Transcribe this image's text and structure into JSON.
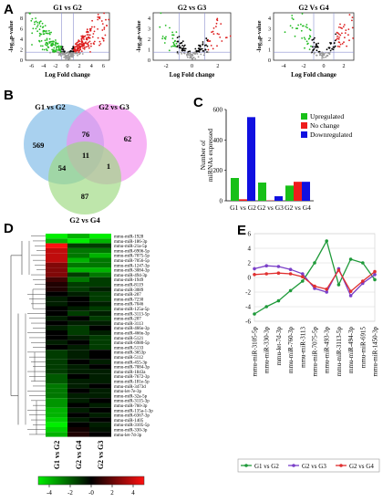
{
  "panels": {
    "a": "A",
    "b": "B",
    "c": "C",
    "d": "D",
    "e": "E"
  },
  "volcano": {
    "xlabel": "Log Fold change",
    "ylabel": "-log₁₀p-value",
    "plots": [
      {
        "title": "G1 vs G2",
        "xticks": [
          "-6",
          "-4",
          "-2",
          "0",
          "2",
          "4",
          "6"
        ],
        "yticks": [
          "0",
          "2",
          "4",
          "6",
          "8"
        ]
      },
      {
        "title": "G2 vs G3",
        "xticks": [
          "-2",
          "0",
          "2"
        ],
        "yticks": [
          "0",
          "1",
          "2",
          "3",
          "4"
        ]
      },
      {
        "title": "G2 Vs G4",
        "xticks": [
          "-4",
          "-2",
          "0",
          "2"
        ],
        "yticks": [
          "0",
          "1",
          "2",
          "3",
          "4"
        ]
      }
    ],
    "colors": {
      "up": "#dd1f1f",
      "down": "#22bb22",
      "ns": "#9a9a9a",
      "sig": "#000000",
      "threshold": "#8c90d0"
    }
  },
  "venn": {
    "sets": [
      {
        "label": "G1 vs G2",
        "color": "#8cc2ea"
      },
      {
        "label": "G2 vs G3",
        "color": "#f28cf0"
      },
      {
        "label": "G2 vs G4",
        "color": "#9bd87e"
      }
    ],
    "regions": {
      "only_a": "569",
      "only_b": "62",
      "only_c": "87",
      "ab": "76",
      "ac": "54",
      "bc": "1",
      "abc": "11"
    }
  },
  "chart_data": [
    {
      "type": "bar",
      "panel": "C",
      "categories": [
        "G1 vs G2",
        "G2 vs G3",
        "G2 vs G4"
      ],
      "series": [
        {
          "name": "Upregulated",
          "values": [
            150,
            120,
            100
          ],
          "color": "#18c018"
        },
        {
          "name": "No change",
          "values": [
            10,
            2,
            125
          ],
          "color": "#ee1c1c"
        },
        {
          "name": "Downregulated",
          "values": [
            550,
            30,
            125
          ],
          "color": "#1010e0"
        }
      ],
      "ylabel": "Number of miRNAs expressed",
      "ylim": [
        0,
        600
      ],
      "yticks": [
        "0",
        "200",
        "400",
        "600"
      ],
      "legend": "top-right",
      "grid": false
    },
    {
      "type": "line",
      "panel": "E",
      "categories": [
        "mmu-miR-3105-5p",
        "mmu-miR-330-3p",
        "mmu-let-7d-3p",
        "mmu-miR-760-3p",
        "mmu-miR-3113",
        "mmu-miR-7075-5p",
        "mmu-miR-493-3p",
        "mmu-miR-3113-5p",
        "mmu-miR-494-3p",
        "mmu-miR-6915",
        "mmu-miR-1450-3p"
      ],
      "series": [
        {
          "name": "G1 vs G2",
          "values": [
            -5,
            -4,
            -3.2,
            -1.8,
            -0.5,
            2,
            5,
            -1,
            2.5,
            2,
            -0.3
          ],
          "color": "#1f9a3a"
        },
        {
          "name": "G2 vs G3",
          "values": [
            1.2,
            1.6,
            1.5,
            1.1,
            0.5,
            -1.5,
            -2,
            1.2,
            -2.5,
            -0.8,
            0.4
          ],
          "color": "#7a3fc8"
        },
        {
          "name": "G2 vs G4",
          "values": [
            0.4,
            0.5,
            0.6,
            0.5,
            0.1,
            -1.2,
            -1.6,
            1,
            -1.9,
            -0.5,
            0.8
          ],
          "color": "#e03030"
        }
      ],
      "ylim": [
        -6,
        6
      ],
      "yticks": [
        "6",
        "4",
        "2",
        "0",
        "-2",
        "-4",
        "-6"
      ],
      "legend": "bottom",
      "grid": true
    }
  ],
  "heatmap": {
    "genes": [
      "mmu-miR-1928",
      "mmu-miR-186-3p",
      "mmu-miR-21a-5p",
      "mmu-miR-6906-5p",
      "mmu-miR-7075-5p",
      "mmu-miR-7056-5p",
      "mmu-miR-1247-3p",
      "mmu-miR-3084-3p",
      "mmu-miR-494-3p",
      "mmu-miR-1949",
      "mmu-miR-8119",
      "mmu-miR-3089",
      "mmu-miR-207",
      "mmu-miR-7230",
      "mmu-miR-7046",
      "mmu-miR-125a-5p",
      "mmu-miR-3113-5p",
      "mmu-miR-207",
      "mmu-miR-3113",
      "mmu-miR-466o-3p",
      "mmu-miR-466n-3p",
      "mmu-miR-5121",
      "mmu-miR-6980-5p",
      "mmu-miR-5133",
      "mmu-miR-3653p",
      "mmu-miR-5112",
      "mmu-miR-455-3p",
      "mmu-miR-7084-3p",
      "mmu-miR-1843a",
      "mmu-miR-7672-3p",
      "mmu-miR-181e-5p",
      "mmu-miR-3473d",
      "mmu-let-7e-3p",
      "mmu-miR-32a-5p",
      "mmu-miR-3115-3p",
      "mmu-miR-760-3p",
      "mmu-miR-135a-1-3p",
      "mmu-miR-6367-3p",
      "mmu-miR-1405",
      "mmu-miR-3105-5p",
      "mmu-miR-330-3p",
      "mmu-let-7d-3p"
    ],
    "values": [
      [
        -4,
        -3,
        -4
      ],
      [
        -3,
        -4,
        -3
      ],
      [
        4,
        -1,
        -1
      ],
      [
        3,
        -2,
        -2
      ],
      [
        3,
        -2,
        -3
      ],
      [
        3,
        -3,
        -2
      ],
      [
        2,
        -2,
        -2
      ],
      [
        2,
        -3,
        -3
      ],
      [
        2,
        -1,
        -2
      ],
      [
        1,
        -2,
        -1
      ],
      [
        0.5,
        -1,
        -1
      ],
      [
        0.5,
        -1,
        -0.5
      ],
      [
        0,
        -0.5,
        -1
      ],
      [
        -0.5,
        0,
        -1
      ],
      [
        -0.5,
        0,
        -0.5
      ],
      [
        0,
        -0.5,
        -1
      ],
      [
        0,
        -1,
        -0.5
      ],
      [
        -0.5,
        0,
        -1
      ],
      [
        0,
        -0.5,
        -0.5
      ],
      [
        -0.5,
        -1,
        0
      ],
      [
        0,
        -1,
        -0.5
      ],
      [
        0,
        -0.5,
        -1
      ],
      [
        -0.5,
        0,
        -1
      ],
      [
        0,
        -0.5,
        -1
      ],
      [
        -1,
        -0.5,
        0
      ],
      [
        -1,
        -0.5,
        0
      ],
      [
        -1,
        0,
        -0.5
      ],
      [
        -1,
        -0.5,
        0
      ],
      [
        -1,
        -0.5,
        -0.5
      ],
      [
        -1.5,
        0,
        -0.5
      ],
      [
        -1.5,
        -0.5,
        -0.5
      ],
      [
        -2,
        -0.5,
        0
      ],
      [
        -2,
        0,
        -0.5
      ],
      [
        -2,
        -0.5,
        -0.5
      ],
      [
        -2.5,
        -0.5,
        0
      ],
      [
        -2.5,
        0,
        -0.5
      ],
      [
        -3,
        -0.5,
        0
      ],
      [
        -3,
        0,
        -0.5
      ],
      [
        -3.5,
        -0.5,
        0
      ],
      [
        -4,
        0,
        -0.5
      ],
      [
        -3.5,
        0.3,
        -0.3
      ],
      [
        -3,
        0.5,
        0
      ]
    ],
    "columns": [
      "G1 vs G2",
      "G2 vs G4",
      "G2 vs G3"
    ],
    "scale_ticks": [
      "-4",
      "-2",
      "-0",
      "2",
      "4"
    ],
    "scale_colors": [
      "#00ee00",
      "#000000",
      "#ff1010"
    ]
  }
}
